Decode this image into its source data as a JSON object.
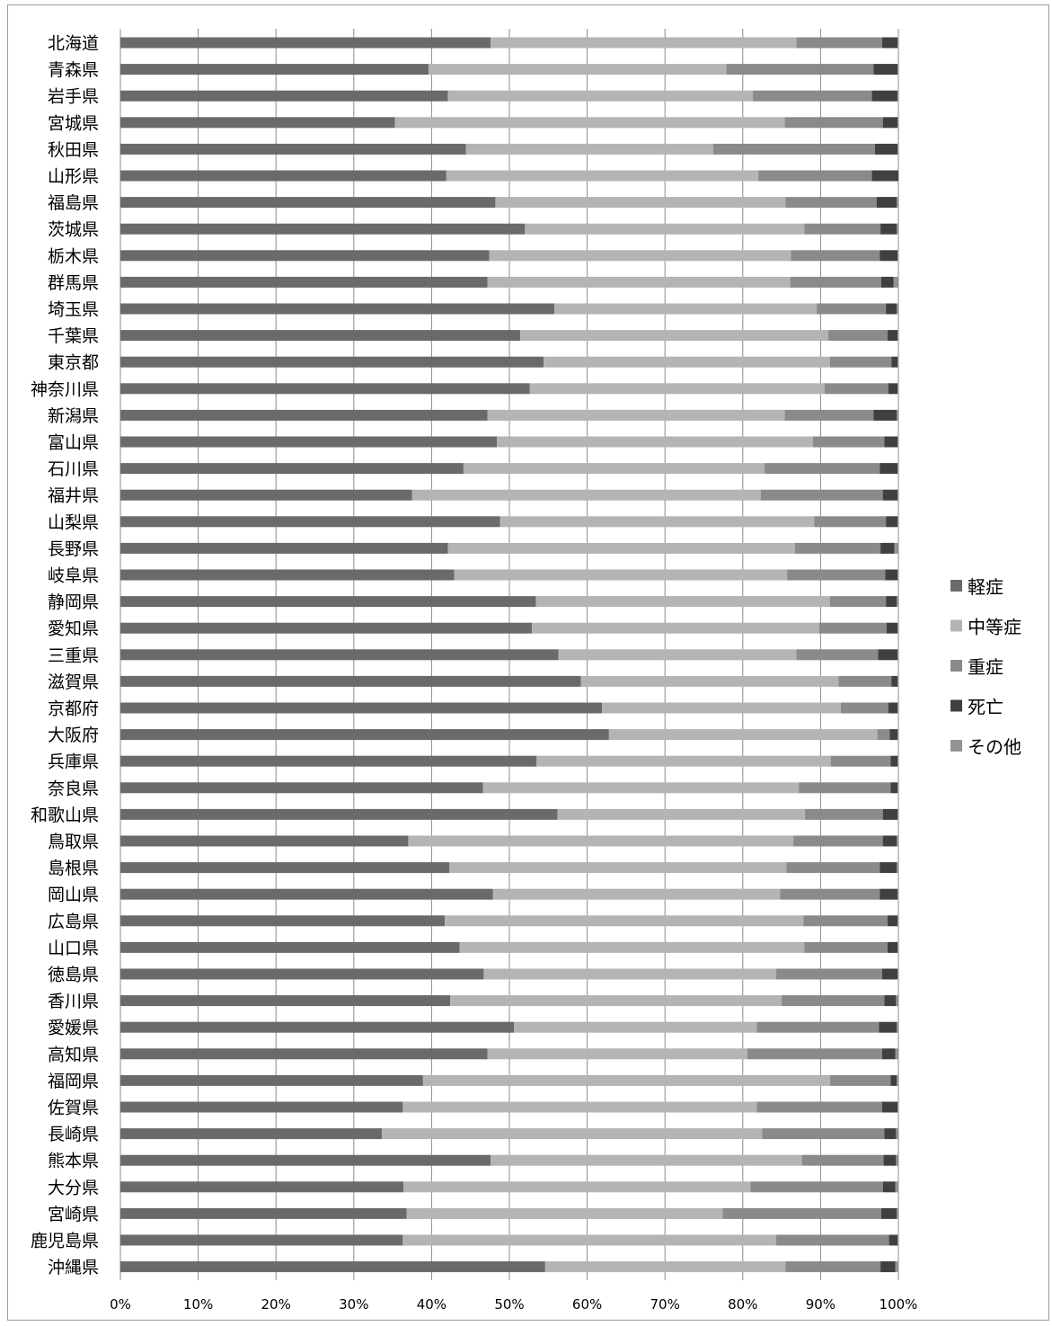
{
  "chart_data": {
    "type": "bar",
    "orientation": "horizontal",
    "stacked": "percent",
    "categories": [
      "北海道",
      "青森県",
      "岩手県",
      "宮城県",
      "秋田県",
      "山形県",
      "福島県",
      "茨城県",
      "栃木県",
      "群馬県",
      "埼玉県",
      "千葉県",
      "東京都",
      "神奈川県",
      "新潟県",
      "富山県",
      "石川県",
      "福井県",
      "山梨県",
      "長野県",
      "岐阜県",
      "静岡県",
      "愛知県",
      "三重県",
      "滋賀県",
      "京都府",
      "大阪府",
      "兵庫県",
      "奈良県",
      "和歌山県",
      "鳥取県",
      "島根県",
      "岡山県",
      "広島県",
      "山口県",
      "徳島県",
      "香川県",
      "愛媛県",
      "高知県",
      "福岡県",
      "佐賀県",
      "長崎県",
      "熊本県",
      "大分県",
      "宮崎県",
      "鹿児島県",
      "沖縄県"
    ],
    "series": [
      {
        "name": "軽症",
        "color": "#6a6a6a",
        "values": [
          47.6,
          39.6,
          42.1,
          35.3,
          44.4,
          41.9,
          48.2,
          52.0,
          47.4,
          47.2,
          55.8,
          51.4,
          54.4,
          52.6,
          47.2,
          48.4,
          44.1,
          37.5,
          48.8,
          42.1,
          42.9,
          53.4,
          52.9,
          56.3,
          59.2,
          61.9,
          62.8,
          53.5,
          46.6,
          56.2,
          37.0,
          42.3,
          47.9,
          41.7,
          43.6,
          46.7,
          42.4,
          50.6,
          47.2,
          38.9,
          36.3,
          33.6,
          47.6,
          36.4,
          36.8,
          36.3,
          54.6
        ]
      },
      {
        "name": "中等症",
        "color": "#b4b4b4",
        "values": [
          39.3,
          38.3,
          39.2,
          50.1,
          31.8,
          40.1,
          37.3,
          35.9,
          38.8,
          38.9,
          33.7,
          39.6,
          36.8,
          37.9,
          38.2,
          40.6,
          38.7,
          44.8,
          40.4,
          44.6,
          42.8,
          37.8,
          36.9,
          30.6,
          33.1,
          30.7,
          34.5,
          37.8,
          40.6,
          31.8,
          49.5,
          43.3,
          36.9,
          46.1,
          44.3,
          37.6,
          42.6,
          31.2,
          33.4,
          52.3,
          45.5,
          48.9,
          40.0,
          44.6,
          40.6,
          48.0,
          30.9
        ]
      },
      {
        "name": "重症",
        "color": "#8a8a8a",
        "values": [
          11.0,
          18.9,
          15.3,
          12.6,
          20.8,
          14.6,
          11.7,
          9.8,
          11.4,
          11.7,
          8.9,
          7.6,
          7.9,
          8.2,
          11.4,
          9.2,
          14.8,
          15.7,
          9.2,
          11.0,
          12.6,
          7.2,
          8.7,
          10.5,
          6.8,
          6.1,
          1.6,
          7.7,
          11.8,
          10.0,
          11.5,
          12.0,
          12.8,
          10.8,
          10.7,
          13.6,
          13.2,
          15.7,
          17.3,
          7.8,
          16.1,
          15.7,
          10.5,
          17.0,
          20.4,
          14.5,
          12.2
        ]
      },
      {
        "name": "死亡",
        "color": "#404040",
        "values": [
          2.0,
          3.1,
          3.3,
          1.9,
          2.9,
          3.4,
          2.6,
          2.1,
          2.3,
          1.6,
          1.4,
          1.3,
          0.8,
          1.2,
          3.0,
          1.7,
          2.3,
          1.9,
          1.5,
          1.8,
          1.6,
          1.4,
          1.4,
          2.5,
          0.8,
          1.2,
          1.0,
          0.9,
          0.9,
          1.9,
          1.8,
          2.2,
          2.3,
          1.3,
          1.3,
          2.0,
          1.5,
          2.3,
          1.7,
          0.8,
          2.0,
          1.5,
          1.6,
          1.6,
          2.0,
          1.1,
          1.9
        ]
      },
      {
        "name": "その他",
        "color": "#939393",
        "values": [
          0.1,
          0.1,
          0.1,
          0.1,
          0.1,
          0.0,
          0.2,
          0.2,
          0.1,
          0.6,
          0.2,
          0.1,
          0.1,
          0.1,
          0.2,
          0.1,
          0.1,
          0.1,
          0.1,
          0.5,
          0.1,
          0.2,
          0.1,
          0.1,
          0.1,
          0.1,
          0.1,
          0.1,
          0.1,
          0.1,
          0.2,
          0.2,
          0.1,
          0.1,
          0.1,
          0.1,
          0.3,
          0.2,
          0.4,
          0.2,
          0.1,
          0.3,
          0.3,
          0.4,
          0.2,
          0.1,
          0.4
        ]
      }
    ],
    "xlim": [
      0,
      100
    ],
    "x_ticks": [
      "0%",
      "10%",
      "20%",
      "30%",
      "40%",
      "50%",
      "60%",
      "70%",
      "80%",
      "90%",
      "100%"
    ],
    "grid": true,
    "legend_position": "right",
    "title": "",
    "xlabel": "",
    "ylabel": ""
  }
}
